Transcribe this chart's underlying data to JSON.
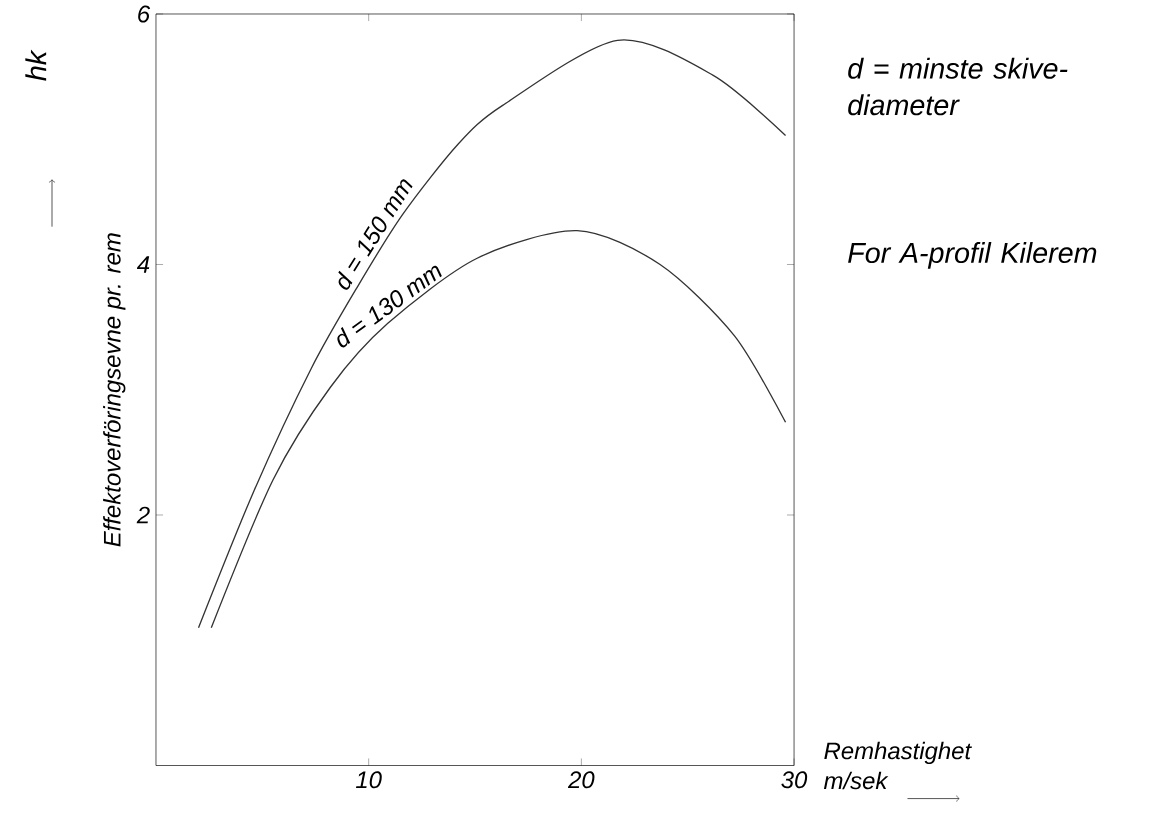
{
  "chart_data": {
    "type": "line",
    "xlabel": "Remhastighet m/sek",
    "ylabel": "Effektoverföringsevne pr. rem",
    "annotations": [
      "hk",
      "d = minste skive-diameter",
      "For A-profil Kilerem"
    ],
    "xlim": [
      0,
      30
    ],
    "ylim": [
      0,
      6
    ],
    "xticks": [
      10,
      20,
      30
    ],
    "yticks": [
      2,
      4,
      6
    ],
    "series": [
      {
        "name": "d = 150 mm",
        "color": "#333333",
        "x": [
          2.0,
          4.6,
          7.3,
          9.5,
          11.6,
          14.2,
          16.3,
          21.7,
          26.2,
          29.6
        ],
        "values": [
          1.1,
          2.19,
          3.17,
          3.83,
          4.4,
          4.96,
          5.27,
          5.79,
          5.51,
          5.03
        ]
      },
      {
        "name": "d = 130 mm",
        "color": "#333333",
        "x": [
          2.6,
          5.5,
          8.2,
          10.9,
          15.1,
          19.8,
          23.7,
          27.2,
          29.6
        ],
        "values": [
          1.1,
          2.28,
          3.02,
          3.53,
          4.05,
          4.27,
          4.0,
          3.43,
          2.74
        ]
      }
    ]
  }
}
